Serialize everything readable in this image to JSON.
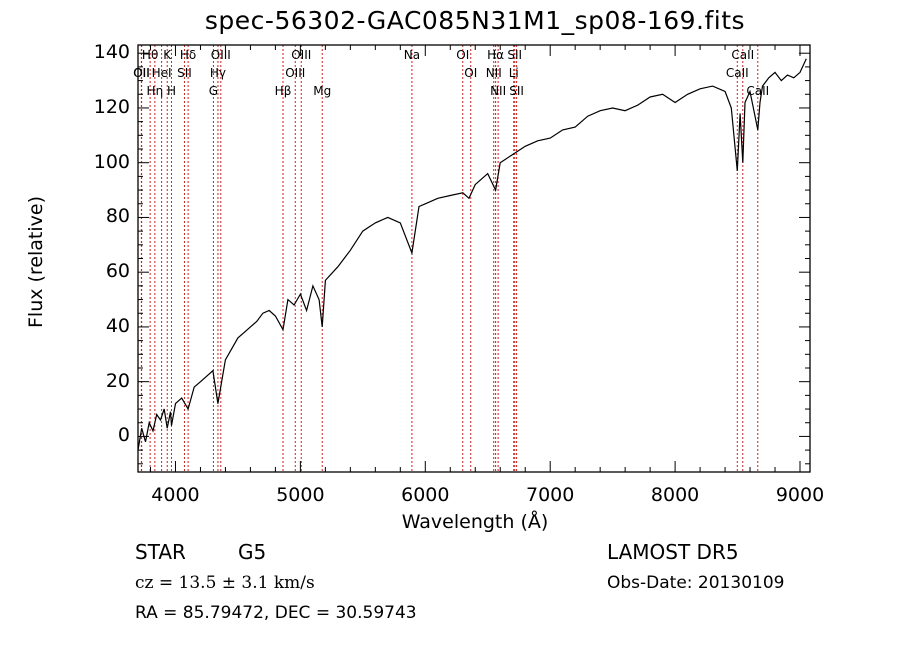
{
  "chart_data": {
    "type": "line",
    "title": "spec-56302-GAC085N31M1_sp08-169.fits",
    "xlabel": "Wavelength (Å)",
    "ylabel": "Flux (relative)",
    "xlim": [
      3700,
      9080
    ],
    "ylim": [
      -13,
      143
    ],
    "x_ticks": [
      "4000",
      "5000",
      "6000",
      "7000",
      "8000",
      "9000"
    ],
    "y_ticks": [
      "0",
      "20",
      "40",
      "60",
      "80",
      "100",
      "120",
      "140"
    ],
    "grid": false,
    "line_color": "#000000",
    "marker_line_color": "#cc2222",
    "spectrum": {
      "x": [
        3700,
        3730,
        3760,
        3790,
        3820,
        3850,
        3880,
        3910,
        3934,
        3960,
        3968,
        4000,
        4050,
        4101,
        4150,
        4200,
        4250,
        4300,
        4340,
        4400,
        4450,
        4500,
        4550,
        4600,
        4650,
        4700,
        4750,
        4800,
        4861,
        4900,
        4950,
        5000,
        5050,
        5100,
        5150,
        5175,
        5200,
        5300,
        5400,
        5500,
        5600,
        5700,
        5800,
        5893,
        5950,
        6000,
        6100,
        6200,
        6300,
        6350,
        6400,
        6500,
        6563,
        6600,
        6700,
        6800,
        6900,
        7000,
        7100,
        7200,
        7300,
        7400,
        7500,
        7600,
        7700,
        7800,
        7900,
        8000,
        8100,
        8200,
        8300,
        8400,
        8450,
        8498,
        8520,
        8542,
        8560,
        8600,
        8662,
        8680,
        8700,
        8750,
        8800,
        8850,
        8900,
        8950,
        9000,
        9050
      ],
      "y": [
        -5,
        3,
        -2,
        5,
        2,
        8,
        6,
        10,
        3,
        9,
        4,
        12,
        14,
        10,
        18,
        20,
        22,
        24,
        12,
        28,
        32,
        36,
        38,
        40,
        42,
        45,
        46,
        44,
        39,
        50,
        48,
        52,
        46,
        55,
        50,
        40,
        57,
        62,
        68,
        75,
        78,
        80,
        78,
        67,
        84,
        85,
        87,
        88,
        89,
        87,
        92,
        96,
        90,
        100,
        103,
        106,
        108,
        109,
        112,
        113,
        117,
        119,
        120,
        119,
        121,
        124,
        125,
        122,
        125,
        127,
        128,
        126,
        120,
        97,
        118,
        100,
        122,
        126,
        112,
        122,
        128,
        131,
        133,
        130,
        132,
        131,
        133,
        138
      ]
    },
    "line_markers": [
      {
        "name": "Hθ",
        "x": 3797
      },
      {
        "name": "K",
        "x": 3934
      },
      {
        "name": "Hδ",
        "x": 4101
      },
      {
        "name": "OIII",
        "x": 4363
      },
      {
        "name": "OIII",
        "x": 5007
      },
      {
        "name": "Na",
        "x": 5893
      },
      {
        "name": "OI",
        "x": 6300
      },
      {
        "name": "Hα",
        "x": 6563
      },
      {
        "name": "SII",
        "x": 6716
      },
      {
        "name": "CaII",
        "x": 8542
      },
      {
        "name": "OII",
        "x": 3727
      },
      {
        "name": "HeI",
        "x": 3889
      },
      {
        "name": "SII",
        "x": 4072
      },
      {
        "name": "Hγ",
        "x": 4340
      },
      {
        "name": "OIII",
        "x": 4959
      },
      {
        "name": "OI",
        "x": 6364
      },
      {
        "name": "NII",
        "x": 6548
      },
      {
        "name": "Li",
        "x": 6708
      },
      {
        "name": "CaII",
        "x": 8498
      },
      {
        "name": "OII",
        "x": 3729
      },
      {
        "name": "Hη",
        "x": 3835
      },
      {
        "name": "H",
        "x": 3968
      },
      {
        "name": "G",
        "x": 4304
      },
      {
        "name": "Hβ",
        "x": 4861
      },
      {
        "name": "Mg",
        "x": 5175
      },
      {
        "name": "NII",
        "x": 6583
      },
      {
        "name": "SII",
        "x": 6731
      },
      {
        "name": "CaII",
        "x": 8662
      }
    ]
  },
  "info": {
    "object_class": "STAR",
    "subclass": "G5",
    "cz": "cz = 13.5 ± 3.1 km/s",
    "coords": "RA =  85.79472, DEC =  30.59743",
    "survey": "LAMOST DR5",
    "obs_date": "Obs-Date: 20130109"
  }
}
